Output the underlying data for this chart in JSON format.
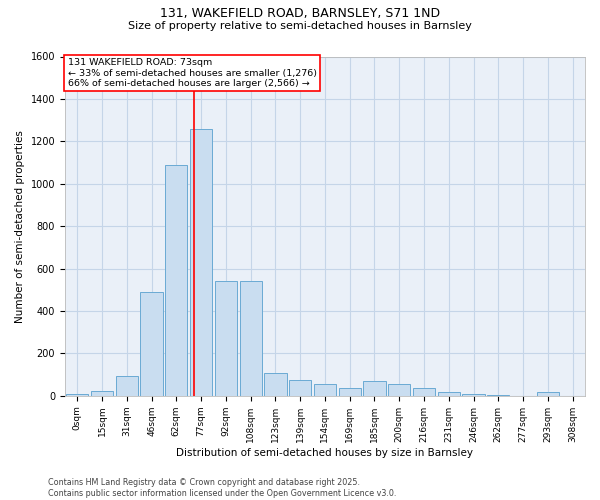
{
  "title_line1": "131, WAKEFIELD ROAD, BARNSLEY, S71 1ND",
  "title_line2": "Size of property relative to semi-detached houses in Barnsley",
  "xlabel": "Distribution of semi-detached houses by size in Barnsley",
  "ylabel": "Number of semi-detached properties",
  "categories": [
    "0sqm",
    "15sqm",
    "31sqm",
    "46sqm",
    "62sqm",
    "77sqm",
    "92sqm",
    "108sqm",
    "123sqm",
    "139sqm",
    "154sqm",
    "169sqm",
    "185sqm",
    "200sqm",
    "216sqm",
    "231sqm",
    "246sqm",
    "262sqm",
    "277sqm",
    "293sqm",
    "308sqm"
  ],
  "values": [
    8,
    25,
    95,
    490,
    1090,
    1260,
    540,
    540,
    108,
    75,
    55,
    35,
    70,
    55,
    35,
    18,
    8,
    4,
    0,
    18,
    0
  ],
  "bar_color": "#c9ddf0",
  "bar_edge_color": "#6aaad4",
  "grid_color": "#c5d5e8",
  "bg_color": "#eaf0f8",
  "vline_color": "red",
  "vline_x": 4.73,
  "annotation_title": "131 WAKEFIELD ROAD: 73sqm",
  "annotation_line1": "← 33% of semi-detached houses are smaller (1,276)",
  "annotation_line2": "66% of semi-detached houses are larger (2,566) →",
  "ylim": [
    0,
    1600
  ],
  "yticks": [
    0,
    200,
    400,
    600,
    800,
    1000,
    1200,
    1400,
    1600
  ],
  "title_fontsize": 9,
  "subtitle_fontsize": 8,
  "ylabel_fontsize": 7.5,
  "xlabel_fontsize": 7.5,
  "tick_fontsize": 6.5,
  "annot_fontsize": 6.8,
  "footer_line1": "Contains HM Land Registry data © Crown copyright and database right 2025.",
  "footer_line2": "Contains public sector information licensed under the Open Government Licence v3.0."
}
